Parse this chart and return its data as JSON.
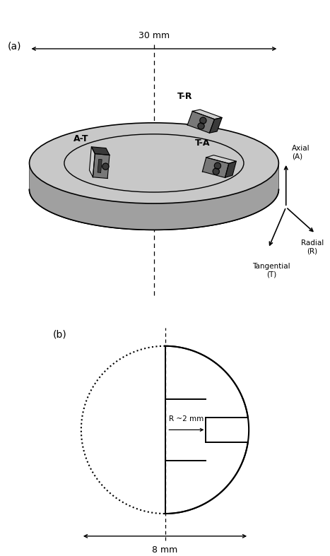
{
  "fig_width": 4.67,
  "fig_height": 7.87,
  "bg_color": "#ffffff",
  "panel_a_label": "(a)",
  "panel_b_label": "(b)",
  "dim_30mm": "30 mm",
  "dim_8mm": "8 mm",
  "label_TR": "T-R",
  "label_TA": "T-A",
  "label_AT": "A-T",
  "label_axial": "Axial\n(A)",
  "label_radial": "Radial\n(R)",
  "label_tangential": "Tangential\n(T)",
  "label_radius": "R ~2 mm",
  "disk_color": "#c8c8c8",
  "disk_shadow": "#a0a0a0",
  "specimen_dark": "#3a3a3a",
  "specimen_mid": "#787878",
  "specimen_light": "#b8b8b8",
  "specimen_top": "#d0d0d0"
}
